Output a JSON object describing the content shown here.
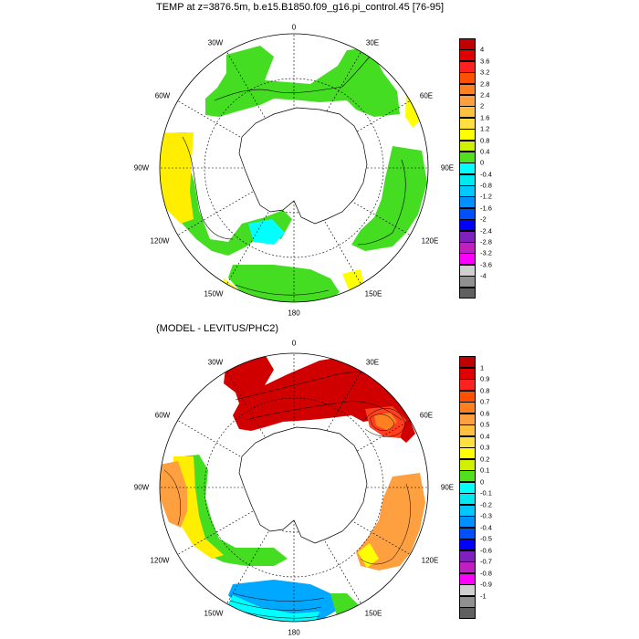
{
  "panel_top": {
    "title": "TEMP at z=3876.5m, b.e15.B1850.f09_g16.pi_control.45 [76-95]",
    "lon_labels": {
      "n0": "0",
      "n30e": "30E",
      "n60e": "60E",
      "n90e": "90E",
      "n120e": "120E",
      "n150e": "150E",
      "n180": "180",
      "n150w": "150W",
      "n120w": "120W",
      "n90w": "90W",
      "n60w": "60W",
      "n30w": "30W"
    },
    "colorbar": {
      "colors": [
        "#c00000",
        "#e00000",
        "#ff2020",
        "#ff5000",
        "#ff8020",
        "#ffa040",
        "#ffc040",
        "#ffe040",
        "#ffff00",
        "#d0f000",
        "#50e020",
        "#00ffff",
        "#00e8f0",
        "#00c8ff",
        "#0090ff",
        "#0050ff",
        "#0000ff",
        "#8020c0",
        "#c020c0",
        "#ff00ff",
        "#d0d0d0",
        "#909090",
        "#606060"
      ],
      "ticks": [
        "4",
        "3.6",
        "3.2",
        "2.8",
        "2.4",
        "2",
        "1.6",
        "1.2",
        "0.8",
        "0.4",
        "0",
        "-0.4",
        "-0.8",
        "-1.2",
        "-1.6",
        "-2",
        "-2.4",
        "-2.8",
        "-3.2",
        "-3.6",
        "-4"
      ]
    }
  },
  "panel_bottom": {
    "title": "(MODEL - LEVITUS/PHC2)",
    "lon_labels": {
      "n0": "0",
      "n30e": "30E",
      "n60e": "60E",
      "n90e": "90E",
      "n120e": "120E",
      "n150e": "150E",
      "n180": "180",
      "n150w": "150W",
      "n120w": "120W",
      "n90w": "90W",
      "n60w": "60W",
      "n30w": "30W"
    },
    "colorbar": {
      "colors": [
        "#c00000",
        "#e00000",
        "#ff2020",
        "#ff5000",
        "#ff8020",
        "#ffa040",
        "#ffc040",
        "#ffe040",
        "#ffff00",
        "#d0f000",
        "#50e020",
        "#00ffff",
        "#00e8f0",
        "#00c8ff",
        "#0090ff",
        "#0050ff",
        "#0000ff",
        "#8020c0",
        "#c020c0",
        "#ff00ff",
        "#d0d0d0",
        "#909090",
        "#606060"
      ],
      "ticks": [
        "1",
        "0.9",
        "0.8",
        "0.7",
        "0.6",
        "0.5",
        "0.4",
        "0.3",
        "0.2",
        "0.1",
        "0",
        "-0.1",
        "-0.2",
        "-0.3",
        "-0.4",
        "-0.5",
        "-0.6",
        "-0.7",
        "-0.8",
        "-0.9",
        "-1"
      ]
    }
  }
}
